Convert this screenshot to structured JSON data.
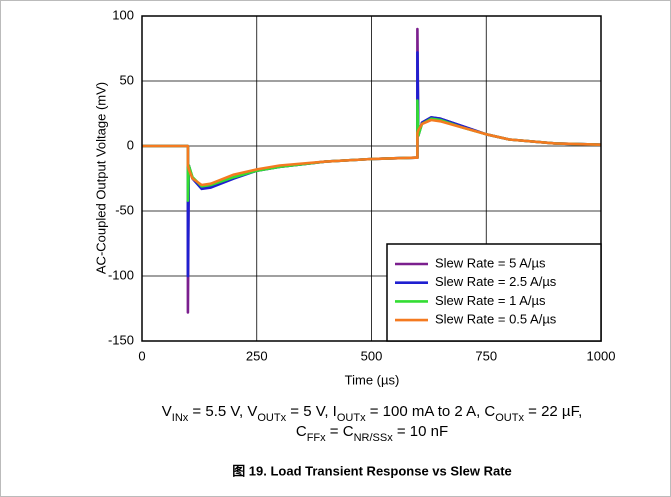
{
  "chart_data": {
    "type": "line",
    "xlabel": "Time (µs)",
    "ylabel": "AC-Coupled Output Voltage (mV)",
    "xlim": [
      0,
      1000
    ],
    "ylim": [
      -150,
      100
    ],
    "xticks": [
      0,
      250,
      500,
      750,
      1000
    ],
    "yticks": [
      -150,
      -100,
      -50,
      0,
      50,
      100
    ],
    "grid": true,
    "legend": "lower right",
    "x": [
      0,
      95,
      100,
      100,
      102,
      110,
      130,
      150,
      200,
      250,
      300,
      400,
      500,
      595,
      600,
      600,
      602,
      610,
      630,
      650,
      700,
      750,
      800,
      900,
      1000
    ],
    "series": [
      {
        "name": "Slew Rate = 5 A/µs",
        "color": "#7b1f8e",
        "values": [
          0,
          0,
          0,
          -128,
          -15,
          -25,
          -32,
          -31,
          -24,
          -19,
          -16,
          -12,
          -10,
          -9,
          -9,
          90,
          8,
          18,
          22,
          21,
          15,
          9,
          5,
          2,
          1
        ]
      },
      {
        "name": "Slew Rate = 2.5 A/µs",
        "color": "#1f1fd0",
        "values": [
          0,
          0,
          0,
          -100,
          -15,
          -25,
          -33,
          -32,
          -25,
          -19,
          -16,
          -12,
          -10,
          -9,
          -9,
          72,
          8,
          18,
          22,
          21,
          15,
          9,
          5,
          2,
          1
        ]
      },
      {
        "name": "Slew Rate = 1 A/µs",
        "color": "#33dd33",
        "values": [
          0,
          0,
          0,
          -42,
          -15,
          -24,
          -31,
          -30,
          -24,
          -19,
          -16,
          -12,
          -10,
          -9,
          -9,
          35,
          8,
          17,
          21,
          20,
          14,
          9,
          5,
          2,
          1
        ]
      },
      {
        "name": "Slew Rate = 0.5 A/µs",
        "color": "#f47a20",
        "values": [
          0,
          0,
          0,
          -15,
          -18,
          -25,
          -30,
          -29,
          -22,
          -18,
          -15,
          -12,
          -10,
          -9,
          -9,
          10,
          12,
          17,
          20,
          19,
          14,
          9,
          5,
          2,
          1
        ]
      }
    ],
    "caption": [
      [
        {
          "text": "V"
        },
        {
          "sub": "INx"
        },
        {
          "text": " = 5.5 V, V"
        },
        {
          "sub": "OUTx"
        },
        {
          "text": " = 5 V, I"
        },
        {
          "sub": "OUTx"
        },
        {
          "text": " = 100 mA to 2 A, C"
        },
        {
          "sub": "OUTx"
        },
        {
          "text": " = 22 µF,"
        }
      ],
      [
        {
          "text": "C"
        },
        {
          "sub": "FFx"
        },
        {
          "text": " = C"
        },
        {
          "sub": "NR/SSx"
        },
        {
          "text": " = 10 nF"
        }
      ]
    ],
    "figure_title": "图 19. Load Transient Response vs Slew Rate"
  }
}
